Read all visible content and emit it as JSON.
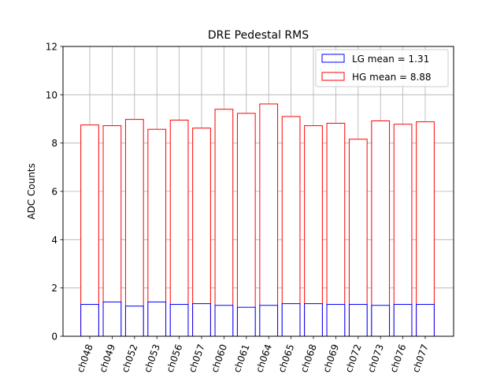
{
  "chart_data": {
    "type": "bar",
    "title": "DRE Pedestal RMS",
    "xlabel": "",
    "ylabel": "ADC Counts",
    "ylim": [
      0,
      12
    ],
    "yticks": [
      0,
      2,
      4,
      6,
      8,
      10,
      12
    ],
    "grid": true,
    "legend_position": "top-right",
    "categories": [
      "ch048",
      "ch049",
      "ch052",
      "ch053",
      "ch056",
      "ch057",
      "ch060",
      "ch061",
      "ch064",
      "ch065",
      "ch068",
      "ch069",
      "ch072",
      "ch073",
      "ch076",
      "ch077"
    ],
    "series": [
      {
        "name": "HG mean = 8.88",
        "color": "#ff0000",
        "values": [
          8.75,
          8.72,
          8.98,
          8.57,
          8.95,
          8.62,
          9.4,
          9.23,
          9.62,
          9.1,
          8.72,
          8.82,
          8.16,
          8.92,
          8.78,
          8.88
        ]
      },
      {
        "name": "LG mean = 1.31",
        "color": "#0000ff",
        "values": [
          1.32,
          1.42,
          1.25,
          1.42,
          1.32,
          1.35,
          1.28,
          1.2,
          1.28,
          1.35,
          1.35,
          1.32,
          1.32,
          1.28,
          1.32,
          1.32
        ]
      }
    ],
    "legend": [
      "LG mean = 1.31",
      "HG mean = 8.88"
    ]
  }
}
